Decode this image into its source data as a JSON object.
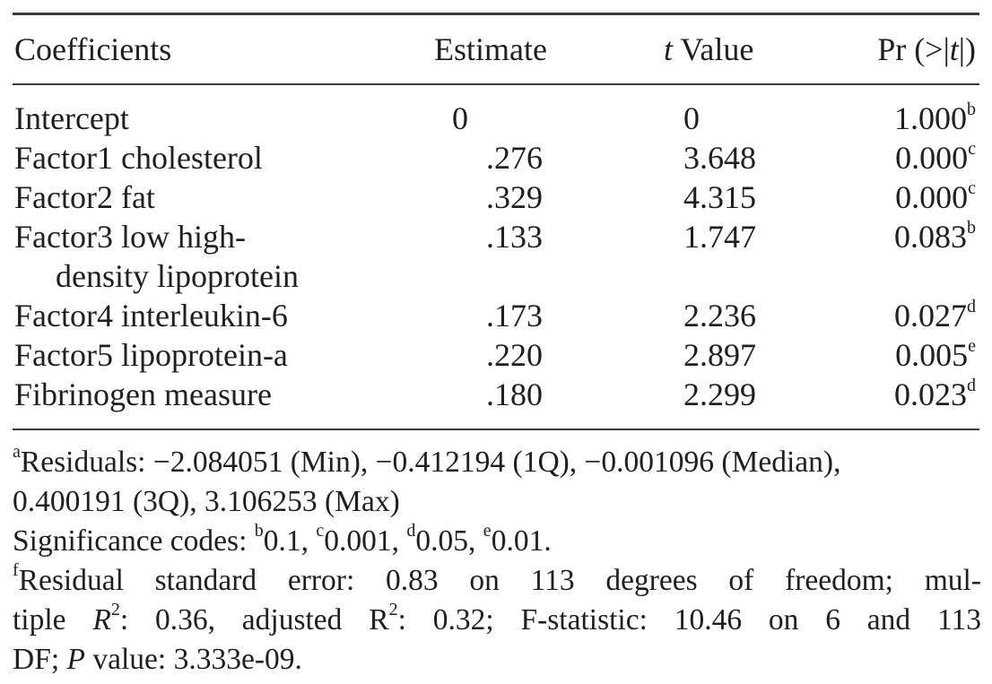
{
  "table": {
    "headers": {
      "coefficients": "Coefficients",
      "estimate": "Estimate",
      "t_value_italic": "t",
      "t_value_rest": " Value",
      "pr_prefix": "Pr (>|",
      "pr_italic": "t",
      "pr_suffix": "|)"
    },
    "rows": [
      {
        "label": "Intercept",
        "label_cont": "",
        "estimate": "0",
        "t_value": "0",
        "p_value": "1.000",
        "p_sup": "b"
      },
      {
        "label": "Factor1 cholesterol",
        "label_cont": "",
        "estimate": ".276",
        "t_value": "3.648",
        "p_value": "0.000",
        "p_sup": "c"
      },
      {
        "label": "Factor2 fat",
        "label_cont": "",
        "estimate": ".329",
        "t_value": "4.315",
        "p_value": "0.000",
        "p_sup": "c"
      },
      {
        "label": "Factor3 low high-",
        "label_cont": "density lipoprotein",
        "estimate": ".133",
        "t_value": "1.747",
        "p_value": "0.083",
        "p_sup": "b"
      },
      {
        "label": "Factor4 interleukin-6",
        "label_cont": "",
        "estimate": ".173",
        "t_value": "2.236",
        "p_value": "0.027",
        "p_sup": "d"
      },
      {
        "label": "Factor5 lipoprotein-a",
        "label_cont": "",
        "estimate": ".220",
        "t_value": "2.897",
        "p_value": "0.005",
        "p_sup": "e"
      },
      {
        "label": "Fibrinogen measure",
        "label_cont": "",
        "estimate": ".180",
        "t_value": "2.299",
        "p_value": "0.023",
        "p_sup": "d"
      }
    ]
  },
  "footnotes": {
    "a_sup": "a",
    "a_line1": "Residuals: −2.084051 (Min), −0.412194 (1Q), −0.001096 (Median),",
    "a_line2": "0.400191 (3Q), 3.106253 (Max)",
    "sig_prefix": "Significance codes: ",
    "sig_b_sup": "b",
    "sig_b": "0.1, ",
    "sig_c_sup": "c",
    "sig_c": "0.001, ",
    "sig_d_sup": "d",
    "sig_d": "0.05, ",
    "sig_e_sup": "e",
    "sig_e": "0.01.",
    "f_sup": "f",
    "f_line1": "Residual standard error: 0.83 on 113 degrees of freedom; mul-",
    "f_line2_a": "tiple ",
    "f_line2_R": "R",
    "f_line2_sup1": "2",
    "f_line2_b": ": 0.36, adjusted R",
    "f_line2_sup2": "2",
    "f_line2_c": ": 0.32; F-statistic: 10.46 on 6 and 113",
    "f_line3_a": "DF; ",
    "f_line3_P": "P",
    "f_line3_b": " value: 3.333e-09."
  }
}
